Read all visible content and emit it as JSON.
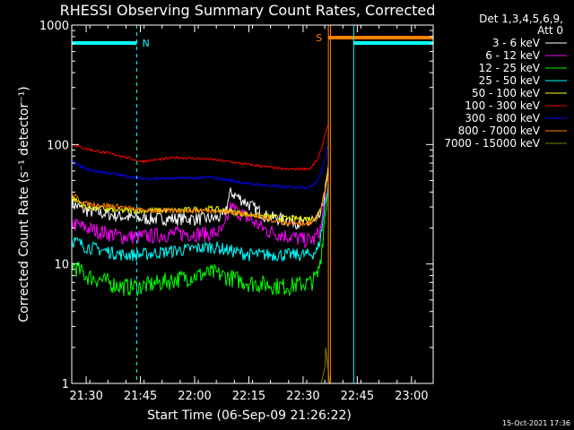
{
  "chart_data": {
    "type": "line",
    "title": "RHESSI Observing Summary Count Rates, Corrected",
    "xlabel": "Start Time (06-Sep-09 21:26:22)",
    "ylabel": "Corrected Count Rate (s⁻¹ detector⁻¹)",
    "yscale": "log",
    "ylim": [
      1,
      1000
    ],
    "xlim": [
      "21:26",
      "23:06"
    ],
    "x_ticks": [
      "21:30",
      "21:45",
      "22:00",
      "22:15",
      "22:30",
      "22:45",
      "23:00"
    ],
    "y_ticks": [
      "1",
      "10",
      "100",
      "1000"
    ],
    "legend_header": [
      "Det 1,3,4,5,6,9,",
      "Att 0"
    ],
    "legend_position": "right",
    "timestamp": "15-Oct-2021 17:36",
    "flags": [
      {
        "label": "N",
        "color": "#00ffff",
        "from": "21:26",
        "to": "21:44"
      },
      {
        "label": "S",
        "color": "#ff8000",
        "from": "22:37",
        "to": "23:06"
      }
    ],
    "series": [
      {
        "name": "3 - 6 keV",
        "color": "#ffffff",
        "x": [
          "21:26",
          "21:30",
          "21:40",
          "21:45",
          "21:55",
          "22:05",
          "22:08",
          "22:10",
          "22:20",
          "22:30",
          "22:33",
          "22:35",
          "22:36",
          "22:37"
        ],
        "values": [
          32,
          28,
          25,
          24,
          24,
          24,
          25,
          40,
          25,
          22,
          22,
          26,
          40,
          60
        ],
        "noise": 0.25
      },
      {
        "name": "6 - 12 keV",
        "color": "#ff00ff",
        "x": [
          "21:26",
          "21:30",
          "21:40",
          "21:45",
          "21:55",
          "22:05",
          "22:08",
          "22:10",
          "22:20",
          "22:30",
          "22:33",
          "22:35",
          "22:36",
          "22:37"
        ],
        "values": [
          22,
          20,
          17,
          17,
          18,
          18,
          19,
          30,
          19,
          16,
          16,
          20,
          35,
          55
        ],
        "noise": 0.3
      },
      {
        "name": "12 - 25 keV",
        "color": "#00ff00",
        "x": [
          "21:26",
          "21:30",
          "21:40",
          "21:45",
          "21:55",
          "22:05",
          "22:15",
          "22:25",
          "22:32",
          "22:34",
          "22:35",
          "22:36",
          "22:37"
        ],
        "values": [
          10,
          8,
          6.5,
          6.5,
          7.5,
          8.5,
          7,
          6.5,
          7,
          8,
          12,
          25,
          45
        ],
        "noise": 0.35
      },
      {
        "name": "25 - 50 keV",
        "color": "#00ffff",
        "x": [
          "21:26",
          "21:30",
          "21:40",
          "21:45",
          "21:55",
          "22:05",
          "22:15",
          "22:25",
          "22:32",
          "22:34",
          "22:35",
          "22:36",
          "22:37"
        ],
        "values": [
          16,
          14,
          12,
          12,
          13,
          14,
          12,
          12,
          12,
          13,
          18,
          30,
          50
        ],
        "noise": 0.25
      },
      {
        "name": "50 - 100 keV",
        "color": "#ffff00",
        "x": [
          "21:26",
          "21:30",
          "21:40",
          "21:45",
          "21:55",
          "22:05",
          "22:15",
          "22:25",
          "22:32",
          "22:34",
          "22:35",
          "22:36",
          "22:37"
        ],
        "values": [
          36,
          30,
          28,
          28,
          28,
          29,
          26,
          24,
          24,
          25,
          30,
          42,
          60
        ],
        "noise": 0.12
      },
      {
        "name": "100 - 300 keV",
        "color": "#ff0000",
        "x": [
          "21:26",
          "21:30",
          "21:40",
          "21:45",
          "21:55",
          "22:05",
          "22:15",
          "22:25",
          "22:32",
          "22:34",
          "22:35",
          "22:36",
          "22:37"
        ],
        "values": [
          100,
          92,
          80,
          72,
          78,
          75,
          68,
          62,
          63,
          75,
          90,
          120,
          150
        ],
        "noise": 0.05
      },
      {
        "name": "300 - 800 keV",
        "color": "#0000ff",
        "x": [
          "21:26",
          "21:30",
          "21:40",
          "21:45",
          "21:55",
          "22:05",
          "22:15",
          "22:25",
          "22:32",
          "22:34",
          "22:35",
          "22:36",
          "22:37"
        ],
        "values": [
          72,
          62,
          55,
          52,
          52,
          53,
          47,
          44,
          44,
          50,
          60,
          75,
          100
        ],
        "noise": 0.06
      },
      {
        "name": "800 - 7000 keV",
        "color": "#ff8000",
        "x": [
          "21:26",
          "21:30",
          "21:40",
          "21:45",
          "21:55",
          "22:05",
          "22:15",
          "22:25",
          "22:32",
          "22:34",
          "22:35",
          "22:36",
          "22:37"
        ],
        "values": [
          38,
          32,
          30,
          28,
          28,
          28,
          26,
          22,
          22,
          24,
          30,
          40,
          55
        ],
        "noise": 0.1
      },
      {
        "name": "7000 - 15000 keV",
        "color": "#808000",
        "x": [
          "22:35",
          "22:36",
          "22:36",
          "22:37"
        ],
        "values": [
          1,
          1.4,
          2,
          1
        ],
        "noise": 0
      }
    ]
  }
}
